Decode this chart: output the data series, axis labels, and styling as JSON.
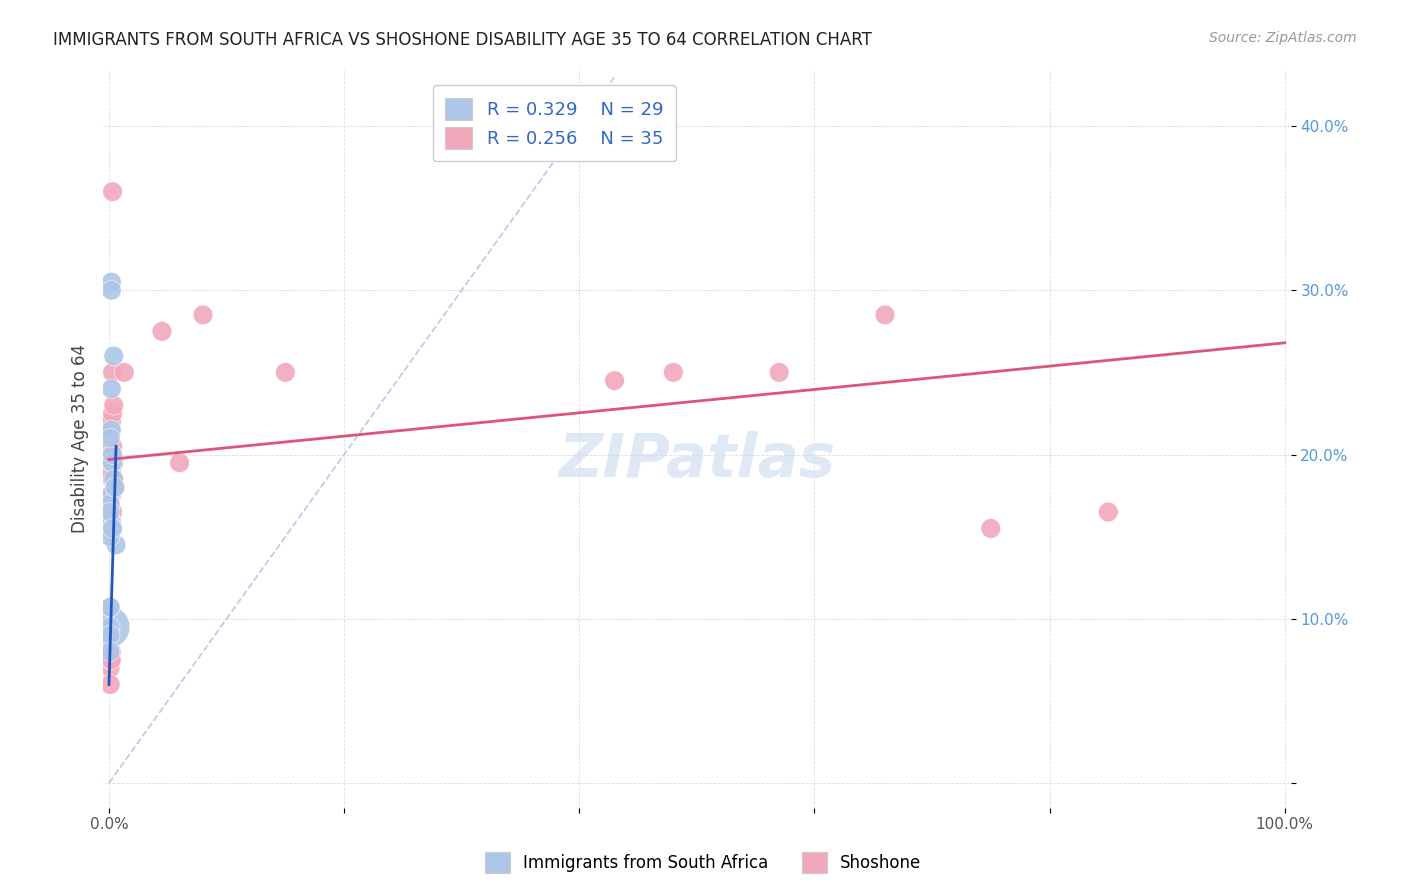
{
  "title": "IMMIGRANTS FROM SOUTH AFRICA VS SHOSHONE DISABILITY AGE 35 TO 64 CORRELATION CHART",
  "source": "Source: ZipAtlas.com",
  "ylabel": "Disability Age 35 to 64",
  "blue_color": "#adc6e8",
  "pink_color": "#f2a8bb",
  "blue_line_color": "#2255bb",
  "pink_line_color": "#dd5577",
  "ref_line_color": "#aac4e0",
  "watermark": "ZIPatlas",
  "scatter_blue": [
    [
      0.0,
      0.095
    ],
    [
      0.0,
      0.09
    ],
    [
      0.0,
      0.085
    ],
    [
      0.0,
      0.095
    ],
    [
      0.0,
      0.095
    ],
    [
      0.001,
      0.095
    ],
    [
      0.001,
      0.09
    ],
    [
      0.001,
      0.16
    ],
    [
      0.002,
      0.155
    ],
    [
      0.002,
      0.195
    ],
    [
      0.003,
      0.195
    ],
    [
      0.003,
      0.2
    ],
    [
      0.004,
      0.26
    ],
    [
      0.004,
      0.185
    ],
    [
      0.002,
      0.24
    ],
    [
      0.002,
      0.215
    ],
    [
      0.001,
      0.175
    ],
    [
      0.001,
      0.17
    ],
    [
      0.001,
      0.21
    ],
    [
      0.005,
      0.18
    ],
    [
      0.002,
      0.305
    ],
    [
      0.002,
      0.3
    ],
    [
      0.006,
      0.145
    ],
    [
      0.001,
      0.107
    ],
    [
      0.001,
      0.107
    ],
    [
      0.001,
      0.165
    ],
    [
      0.001,
      0.08
    ],
    [
      0.001,
      0.15
    ],
    [
      0.003,
      0.155
    ]
  ],
  "scatter_blue_sizes": [
    200,
    200,
    200,
    200,
    900,
    200,
    200,
    200,
    200,
    200,
    200,
    200,
    200,
    200,
    200,
    200,
    200,
    200,
    200,
    200,
    200,
    200,
    200,
    200,
    200,
    200,
    200,
    200,
    200
  ],
  "scatter_pink": [
    [
      0.001,
      0.07
    ],
    [
      0.001,
      0.075
    ],
    [
      0.002,
      0.08
    ],
    [
      0.002,
      0.075
    ],
    [
      0.001,
      0.06
    ],
    [
      0.001,
      0.155
    ],
    [
      0.002,
      0.16
    ],
    [
      0.002,
      0.165
    ],
    [
      0.002,
      0.185
    ],
    [
      0.003,
      0.185
    ],
    [
      0.002,
      0.195
    ],
    [
      0.002,
      0.2
    ],
    [
      0.003,
      0.205
    ],
    [
      0.001,
      0.215
    ],
    [
      0.002,
      0.22
    ],
    [
      0.003,
      0.225
    ],
    [
      0.003,
      0.25
    ],
    [
      0.004,
      0.23
    ],
    [
      0.002,
      0.19
    ],
    [
      0.002,
      0.175
    ],
    [
      0.003,
      0.165
    ],
    [
      0.005,
      0.18
    ],
    [
      0.004,
      0.195
    ],
    [
      0.003,
      0.36
    ],
    [
      0.013,
      0.25
    ],
    [
      0.045,
      0.275
    ],
    [
      0.06,
      0.195
    ],
    [
      0.08,
      0.285
    ],
    [
      0.15,
      0.25
    ],
    [
      0.43,
      0.245
    ],
    [
      0.48,
      0.25
    ],
    [
      0.57,
      0.25
    ],
    [
      0.66,
      0.285
    ],
    [
      0.75,
      0.155
    ],
    [
      0.85,
      0.165
    ]
  ],
  "scatter_pink_sizes": [
    200,
    200,
    200,
    200,
    200,
    200,
    200,
    200,
    200,
    200,
    200,
    200,
    200,
    200,
    200,
    200,
    200,
    200,
    200,
    200,
    200,
    200,
    200,
    200,
    200,
    200,
    200,
    200,
    200,
    200,
    200,
    200,
    200,
    200,
    200
  ],
  "blue_trend_x": [
    0.0,
    0.006
  ],
  "blue_trend_y": [
    0.06,
    0.205
  ],
  "pink_trend_x": [
    0.0,
    1.0
  ],
  "pink_trend_y": [
    0.197,
    0.268
  ],
  "ref_line_x": [
    0.0,
    0.43
  ],
  "ref_line_y": [
    0.0,
    0.43
  ],
  "xlim": [
    -0.005,
    1.005
  ],
  "ylim": [
    -0.015,
    0.435
  ],
  "x_ticks": [
    0.0,
    0.2,
    0.4,
    0.6,
    0.8,
    1.0
  ],
  "x_tick_labels": [
    "0.0%",
    "",
    "",
    "",
    "",
    "100.0%"
  ],
  "y_ticks": [
    0.0,
    0.1,
    0.2,
    0.3,
    0.4
  ],
  "y_tick_labels": [
    "",
    "10.0%",
    "20.0%",
    "30.0%",
    "40.0%"
  ],
  "legend_entries": [
    {
      "label": "R = 0.329    N = 29",
      "color": "#adc6e8"
    },
    {
      "label": "R = 0.256    N = 35",
      "color": "#f2a8bb"
    }
  ],
  "bottom_legend": [
    "Immigrants from South Africa",
    "Shoshone"
  ]
}
